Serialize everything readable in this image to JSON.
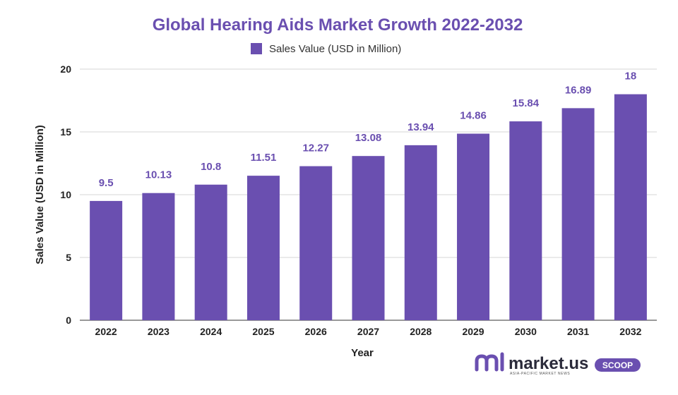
{
  "chart_data": {
    "type": "bar",
    "title": "Global Hearing Aids Market Growth 2022-2032",
    "xlabel": "Year",
    "ylabel": "Sales Value (USD in Million)",
    "categories": [
      "2022",
      "2023",
      "2024",
      "2025",
      "2026",
      "2027",
      "2028",
      "2029",
      "2030",
      "2031",
      "2032"
    ],
    "series": [
      {
        "name": "Sales Value (USD in Million)",
        "values": [
          9.5,
          10.13,
          10.8,
          11.51,
          12.27,
          13.08,
          13.94,
          14.86,
          15.84,
          16.89,
          18
        ],
        "labels": [
          "9.5",
          "10.13",
          "10.8",
          "11.51",
          "12.27",
          "13.08",
          "13.94",
          "14.86",
          "15.84",
          "16.89",
          "18"
        ],
        "color": "#6a4fb0"
      }
    ],
    "ylim": [
      0,
      20
    ],
    "yticks": [
      0,
      5,
      10,
      15,
      20
    ],
    "grid": true,
    "legend": "top-center"
  },
  "branding": {
    "logo_text": "market.us",
    "logo_tagline": "ASIA-PACIFIC MARKET NEWS",
    "badge": "SCOOP",
    "logo_color": "#6a4fb0",
    "badge_color": "#6a4fb0"
  }
}
